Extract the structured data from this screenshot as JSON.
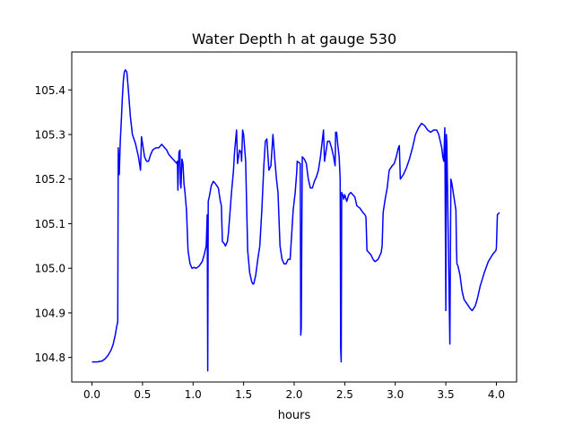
{
  "chart_data": {
    "type": "line",
    "title": "Water Depth h at gauge 530",
    "xlabel": "hours",
    "ylabel": "",
    "xlim": [
      -0.2,
      4.2
    ],
    "ylim": [
      104.745,
      105.485
    ],
    "xticks": [
      0.0,
      0.5,
      1.0,
      1.5,
      2.0,
      2.5,
      3.0,
      3.5,
      4.0
    ],
    "xtick_labels": [
      "0.0",
      "0.5",
      "1.0",
      "1.5",
      "2.0",
      "2.5",
      "3.0",
      "3.5",
      "4.0"
    ],
    "yticks": [
      104.8,
      104.9,
      105.0,
      105.1,
      105.2,
      105.3,
      105.4
    ],
    "ytick_labels": [
      "104.8",
      "104.9",
      "105.0",
      "105.1",
      "105.2",
      "105.3",
      "105.4"
    ],
    "grid": false,
    "legend": "none",
    "series_color": "#0000ff",
    "series": [
      {
        "x": [
          0.0,
          0.05,
          0.1,
          0.13,
          0.16,
          0.19,
          0.21,
          0.23,
          0.245,
          0.255,
          0.26,
          0.27,
          0.28,
          0.29,
          0.3,
          0.31,
          0.32,
          0.33,
          0.345,
          0.36,
          0.38,
          0.4,
          0.43,
          0.46,
          0.48,
          0.49,
          0.5,
          0.52,
          0.54,
          0.56,
          0.58,
          0.6,
          0.63,
          0.66,
          0.69,
          0.72,
          0.74,
          0.76,
          0.8,
          0.82,
          0.84,
          0.845,
          0.85,
          0.86,
          0.87,
          0.875,
          0.88,
          0.89,
          0.9,
          0.91,
          0.92,
          0.935,
          0.95,
          0.97,
          0.99,
          1.01,
          1.03,
          1.06,
          1.09,
          1.11,
          1.13,
          1.14,
          1.145,
          1.15,
          1.16,
          1.18,
          1.2,
          1.22,
          1.25,
          1.27,
          1.28,
          1.29,
          1.31,
          1.32,
          1.33,
          1.34,
          1.35,
          1.38,
          1.4,
          1.41,
          1.42,
          1.43,
          1.44,
          1.46,
          1.475,
          1.48,
          1.49,
          1.5,
          1.52,
          1.54,
          1.56,
          1.58,
          1.59,
          1.6,
          1.62,
          1.64,
          1.66,
          1.68,
          1.69,
          1.7,
          1.715,
          1.73,
          1.75,
          1.77,
          1.79,
          1.8,
          1.81,
          1.825,
          1.84,
          1.86,
          1.88,
          1.9,
          1.92,
          1.94,
          1.96,
          1.99,
          2.01,
          2.02,
          2.025,
          2.03,
          2.06,
          2.065,
          2.07,
          2.08,
          2.1,
          2.12,
          2.14,
          2.16,
          2.18,
          2.2,
          2.22,
          2.24,
          2.26,
          2.28,
          2.29,
          2.3,
          2.31,
          2.33,
          2.35,
          2.37,
          2.39,
          2.405,
          2.41,
          2.42,
          2.43,
          2.445,
          2.455,
          2.46,
          2.465,
          2.47,
          2.48,
          2.49,
          2.5,
          2.52,
          2.54,
          2.56,
          2.58,
          2.6,
          2.62,
          2.65,
          2.68,
          2.7,
          2.71,
          2.72,
          2.74,
          2.76,
          2.78,
          2.8,
          2.83,
          2.86,
          2.87,
          2.88,
          2.9,
          2.92,
          2.94,
          2.97,
          2.99,
          3.01,
          3.03,
          3.04,
          3.05,
          3.08,
          3.11,
          3.14,
          3.17,
          3.2,
          3.23,
          3.26,
          3.29,
          3.32,
          3.35,
          3.38,
          3.41,
          3.43,
          3.45,
          3.46,
          3.47,
          3.48,
          3.49,
          3.5,
          3.505,
          3.51,
          3.54,
          3.55,
          3.56,
          3.58,
          3.6,
          3.605,
          3.61,
          3.62,
          3.64,
          3.66,
          3.68,
          3.71,
          3.74,
          3.76,
          3.79,
          3.81,
          3.84,
          3.88,
          3.92,
          3.96,
          3.995,
          4.0,
          4.01,
          4.03
        ],
        "values": [
          104.79,
          104.79,
          104.792,
          104.797,
          104.805,
          104.817,
          104.83,
          104.85,
          104.87,
          104.88,
          105.27,
          105.21,
          105.285,
          105.33,
          105.38,
          105.42,
          105.44,
          105.445,
          105.44,
          105.4,
          105.34,
          105.3,
          105.28,
          105.25,
          105.22,
          105.295,
          105.28,
          105.25,
          105.24,
          105.24,
          105.255,
          105.265,
          105.27,
          105.27,
          105.278,
          105.27,
          105.265,
          105.255,
          105.245,
          105.24,
          105.235,
          105.24,
          105.175,
          105.26,
          105.265,
          105.19,
          105.18,
          105.245,
          105.235,
          105.19,
          105.17,
          105.13,
          105.04,
          105.01,
          105.0,
          105.002,
          105.0,
          105.005,
          105.015,
          105.03,
          105.05,
          105.12,
          104.77,
          105.15,
          105.16,
          105.185,
          105.195,
          105.19,
          105.18,
          105.15,
          105.14,
          105.06,
          105.055,
          105.05,
          105.055,
          105.06,
          105.08,
          105.17,
          105.22,
          105.26,
          105.285,
          105.31,
          105.235,
          105.265,
          105.26,
          105.24,
          105.31,
          105.3,
          105.24,
          105.04,
          104.99,
          104.97,
          104.965,
          104.965,
          104.985,
          105.02,
          105.05,
          105.13,
          105.18,
          105.23,
          105.285,
          105.29,
          105.22,
          105.23,
          105.3,
          105.27,
          105.24,
          105.2,
          105.17,
          105.05,
          105.02,
          105.01,
          105.01,
          105.02,
          105.02,
          105.13,
          105.17,
          105.2,
          105.215,
          105.24,
          105.235,
          104.85,
          104.865,
          105.25,
          105.245,
          105.235,
          105.2,
          105.18,
          105.18,
          105.195,
          105.205,
          105.22,
          105.25,
          105.29,
          105.31,
          105.24,
          105.255,
          105.285,
          105.285,
          105.27,
          105.25,
          105.23,
          105.305,
          105.305,
          105.28,
          105.25,
          105.2,
          104.82,
          104.79,
          105.17,
          105.165,
          105.155,
          105.165,
          105.15,
          105.165,
          105.17,
          105.165,
          105.16,
          105.14,
          105.135,
          105.125,
          105.12,
          105.115,
          105.04,
          105.035,
          105.03,
          105.02,
          105.015,
          105.02,
          105.035,
          105.05,
          105.125,
          105.155,
          105.18,
          105.22,
          105.23,
          105.235,
          105.25,
          105.27,
          105.275,
          105.2,
          105.21,
          105.225,
          105.245,
          105.27,
          105.3,
          105.315,
          105.325,
          105.32,
          105.31,
          105.305,
          105.31,
          105.31,
          105.3,
          105.28,
          105.27,
          105.25,
          105.24,
          105.315,
          104.905,
          105.3,
          105.28,
          104.83,
          105.2,
          105.19,
          105.16,
          105.13,
          105.045,
          105.01,
          105.005,
          104.985,
          104.95,
          104.93,
          104.92,
          104.91,
          104.905,
          104.915,
          104.93,
          104.96,
          104.99,
          105.015,
          105.03,
          105.04,
          105.045,
          105.12,
          105.125
        ]
      }
    ]
  }
}
